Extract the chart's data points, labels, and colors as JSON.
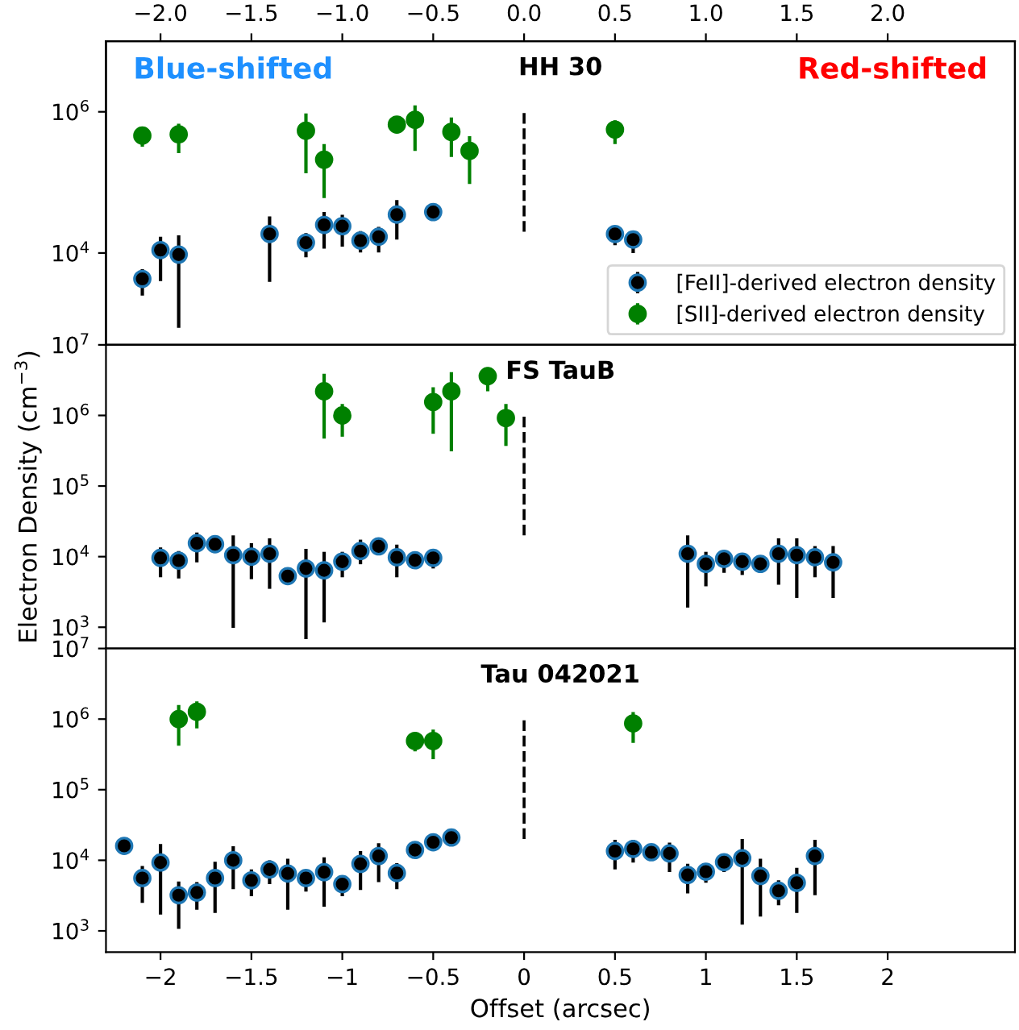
{
  "chart_data": [
    {
      "type": "scatter",
      "title": "HH 30",
      "annotations": [
        "Blue-shifted",
        "Red-shifted"
      ],
      "marker": "circle",
      "legend": "bottom right",
      "tick_labels": "y",
      "xlim": [
        -2.3,
        2.7
      ],
      "xticks": [
        -2,
        -1.5,
        -1,
        -0.5,
        0,
        0.5,
        1,
        1.5,
        2
      ],
      "x2lim": [
        -2.3,
        2.7
      ],
      "x2ticks": [
        {
          "value": -2,
          "label": "−2.0"
        },
        {
          "value": -1.5,
          "label": "−1.5"
        },
        {
          "value": -1,
          "label": "−1.0"
        },
        {
          "value": -0.5,
          "label": "−0.5"
        },
        {
          "value": 0,
          "label": "0.0"
        },
        {
          "value": 0.5,
          "label": "0.5"
        },
        {
          "value": 1,
          "label": "1.0"
        },
        {
          "value": 1.5,
          "label": "1.5"
        },
        {
          "value": 2,
          "label": "2.0"
        }
      ],
      "log": "y",
      "ylim": [
        500,
        10000000
      ],
      "yticks": [
        {
          "value": 10000,
          "label": "10$^{4}$"
        },
        {
          "value": 1000000,
          "label": "10$^{6}$"
        }
      ],
      "series": [
        {
          "name": "[FeII]-derived electron density",
          "color": "#000000",
          "x": [
            -2.1,
            -2.0,
            -1.9,
            -1.4,
            -1.2,
            -1.1,
            -1.0,
            -0.9,
            -0.8,
            -0.7,
            -0.5,
            0.5,
            0.6
          ],
          "values": [
            4300,
            11000,
            9500,
            18600,
            14000,
            25000,
            24000,
            15000,
            17000,
            35000,
            38000,
            18600,
            15500
          ],
          "errors": [
            [
              2500,
              5900
            ],
            [
              4000,
              17000
            ],
            [
              870,
              17800
            ],
            [
              3900,
              33000
            ],
            [
              8700,
              19100
            ],
            [
              11500,
              38000
            ],
            [
              12300,
              34700
            ],
            [
              10200,
              20400
            ],
            [
              10200,
              23400
            ],
            [
              15500,
              56000
            ],
            null,
            [
              12900,
              23400
            ],
            [
              10000,
              19500
            ]
          ]
        },
        {
          "name": "[SII]-derived electron density",
          "color": "#008000",
          "x": [
            -2.1,
            -1.9,
            -1.2,
            -1.1,
            -0.7,
            -0.6,
            -0.4,
            -0.3,
            0.5
          ],
          "values": [
            460000,
            480000,
            540000,
            210000,
            660000,
            770000,
            520000,
            280000,
            560000
          ],
          "errors": [
            [
              320000,
              590000
            ],
            [
              260000,
              680000
            ],
            [
              135000,
              950000
            ],
            [
              60000,
              350000
            ],
            null,
            [
              280000,
              1230000
            ],
            [
              230000,
              830000
            ],
            [
              95000,
              450000
            ],
            [
              350000,
              760000
            ]
          ]
        },
        {
          "type": "line",
          "color": "#000000",
          "line_style": "dashed",
          "marker": "none",
          "x": [
            0,
            0
          ],
          "values": [
            20000,
            1000000
          ]
        }
      ]
    },
    {
      "type": "scatter",
      "title": "FS TauB",
      "ylabel": "Electron Density (cm$^{−3}$)",
      "marker": "circle",
      "tick_labels": "y",
      "xlim": [
        -2.3,
        2.7
      ],
      "xticks": [
        -2,
        -1.5,
        -1,
        -0.5,
        0,
        0.5,
        1,
        1.5,
        2
      ],
      "log": "y",
      "ylim": [
        500,
        10000000
      ],
      "yticks": [
        {
          "value": 1000,
          "label": "10$^{3}$"
        },
        {
          "value": 10000,
          "label": "10$^{4}$"
        },
        {
          "value": 100000,
          "label": "10$^{5}$"
        },
        {
          "value": 1000000,
          "label": "10$^{6}$"
        },
        {
          "value": 10000000,
          "label": "10$^{7}$"
        }
      ],
      "series": [
        {
          "color": "#000000",
          "x": [
            -2.0,
            -1.9,
            -1.8,
            -1.7,
            -1.6,
            -1.5,
            -1.4,
            -1.3,
            -1.2,
            -1.1,
            -1.0,
            -0.9,
            -0.8,
            -0.7,
            -0.6,
            -0.5,
            0.9,
            1.0,
            1.1,
            1.2,
            1.3,
            1.4,
            1.5,
            1.6,
            1.7
          ],
          "values": [
            9600,
            8800,
            15500,
            15000,
            10500,
            10000,
            11000,
            5300,
            6800,
            6400,
            8500,
            12000,
            14000,
            9800,
            8900,
            9600,
            11000,
            7900,
            9300,
            8500,
            7900,
            11000,
            10500,
            9800,
            8300
          ],
          "errors": [
            [
              5100,
              13500
            ],
            [
              4900,
              12000
            ],
            [
              8300,
              22000
            ],
            [
              12300,
              17400
            ],
            [
              980,
              20000
            ],
            [
              4800,
              15500
            ],
            [
              3500,
              18200
            ],
            [
              4400,
              6500
            ],
            [
              680,
              12900
            ],
            [
              1170,
              11700
            ],
            [
              5100,
              11700
            ],
            [
              7800,
              17400
            ],
            null,
            [
              5100,
              14800
            ],
            null,
            [
              6800,
              12300
            ],
            [
              1900,
              20000
            ],
            [
              3800,
              11700
            ],
            [
              5900,
              12300
            ],
            [
              5500,
              11200
            ],
            null,
            [
              4000,
              18200
            ],
            [
              2600,
              18200
            ],
            [
              5100,
              14100
            ],
            [
              2600,
              14100
            ]
          ]
        },
        {
          "color": "#008000",
          "x": [
            -1.1,
            -1.0,
            -0.5,
            -0.4,
            -0.2,
            -0.1
          ],
          "values": [
            2200000,
            1000000,
            1550000,
            2200000,
            3600000,
            920000
          ],
          "errors": [
            [
              470000,
              3900000
            ],
            [
              500000,
              1450000
            ],
            [
              550000,
              2500000
            ],
            [
              310000,
              4100000
            ],
            [
              2200000,
              4800000
            ],
            [
              370000,
              1450000
            ]
          ]
        },
        {
          "type": "line",
          "color": "#000000",
          "line_style": "dashed",
          "marker": "none",
          "x": [
            0,
            0
          ],
          "values": [
            20000,
            1000000
          ]
        }
      ]
    },
    {
      "type": "scatter",
      "title": "Tau 042021",
      "xlabel": "Offset (arcsec)",
      "marker": "circle",
      "xlim": [
        -2.3,
        2.7
      ],
      "xticks": [
        {
          "value": -2,
          "label": "−2"
        },
        {
          "value": -1.5,
          "label": "−1.5"
        },
        {
          "value": -1,
          "label": "−1"
        },
        {
          "value": -0.5,
          "label": "−0.5"
        },
        0,
        0.5,
        1,
        1.5,
        2
      ],
      "log": "y",
      "ylim": [
        500,
        10000000
      ],
      "yticks": [
        {
          "value": 1000,
          "label": "10$^{3}$"
        },
        {
          "value": 10000,
          "label": "10$^{4}$"
        },
        {
          "value": 100000,
          "label": "10$^{5}$"
        },
        {
          "value": 1000000,
          "label": "10$^{6}$"
        },
        {
          "value": 10000000,
          "label": "10$^{7}$"
        }
      ],
      "series": [
        {
          "color": "#000000",
          "x": [
            -2.2,
            -2.1,
            -2.0,
            -1.9,
            -1.8,
            -1.7,
            -1.6,
            -1.5,
            -1.4,
            -1.3,
            -1.2,
            -1.1,
            -1.0,
            -0.9,
            -0.8,
            -0.7,
            -0.6,
            -0.5,
            -0.4,
            0.5,
            0.6,
            0.7,
            0.8,
            0.9,
            1.0,
            1.1,
            1.2,
            1.3,
            1.4,
            1.5,
            1.6
          ],
          "values": [
            16000,
            5600,
            9300,
            3200,
            3500,
            5600,
            10000,
            5200,
            7400,
            6500,
            5600,
            6800,
            4600,
            8900,
            11500,
            6600,
            14000,
            18000,
            21000,
            13500,
            14500,
            13000,
            12500,
            6200,
            6900,
            9400,
            10700,
            6000,
            3700,
            4800,
            11500
          ],
          "errors": [
            null,
            [
              2500,
              8300
            ],
            [
              1700,
              17000
            ],
            [
              1070,
              5000
            ],
            [
              2000,
              4900
            ],
            [
              1800,
              9500
            ],
            [
              3900,
              15800
            ],
            [
              3100,
              7400
            ],
            [
              4600,
              10000
            ],
            [
              2000,
              10500
            ],
            [
              3600,
              6800
            ],
            [
              2200,
              11000
            ],
            [
              3100,
              5600
            ],
            [
              3800,
              13500
            ],
            [
              4900,
              17400
            ],
            [
              3900,
              9100
            ],
            null,
            null,
            null,
            [
              7400,
              19500
            ],
            [
              9300,
              19500
            ],
            null,
            [
              6800,
              17800
            ],
            [
              3400,
              8900
            ],
            [
              4800,
              8300
            ],
            [
              6800,
              11000
            ],
            [
              1230,
              20000
            ],
            [
              1600,
              10500
            ],
            [
              2300,
              5200
            ],
            [
              1800,
              7800
            ],
            [
              3200,
              19500
            ]
          ]
        },
        {
          "color": "#008000",
          "x": [
            -1.9,
            -1.8,
            -0.6,
            -0.5,
            0.6
          ],
          "values": [
            1000000,
            1270000,
            490000,
            490000,
            870000
          ],
          "errors": [
            [
              420000,
              1580000
            ],
            [
              740000,
              1780000
            ],
            [
              350000,
              650000
            ],
            [
              270000,
              710000
            ],
            [
              460000,
              1260000
            ]
          ]
        },
        {
          "type": "line",
          "color": "#000000",
          "line_style": "dashed",
          "marker": "none",
          "x": [
            0,
            0
          ],
          "values": [
            20000,
            1000000
          ]
        }
      ]
    }
  ]
}
